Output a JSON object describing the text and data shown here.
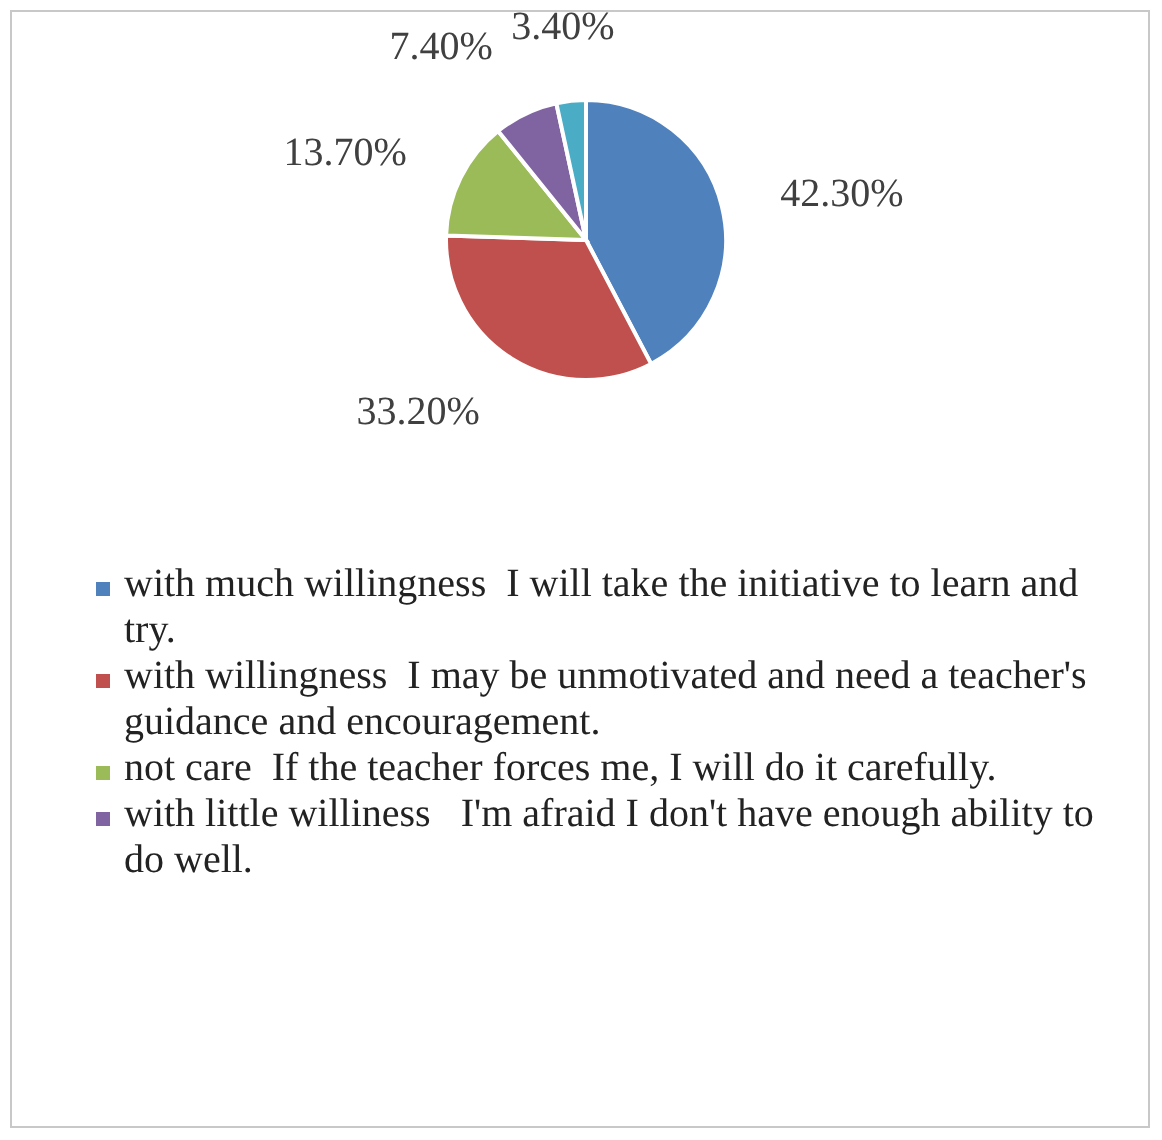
{
  "chart_data": {
    "type": "pie",
    "categories": [
      "with much willingness  I will take the initiative to learn and try.",
      "with willingness  I may be unmotivated and need a teacher's guidance and encouragement.",
      "not care  If the teacher forces me, I will do it carefully.",
      "with little williness   I'm afraid I don't have enough ability to do well.",
      null
    ],
    "values": [
      42.3,
      33.2,
      13.7,
      7.4,
      3.4
    ],
    "colors": [
      "#4f81bd",
      "#c0504d",
      "#9bbb59",
      "#8064a2",
      "#4bacc6"
    ],
    "value_labels": [
      "42.30%",
      "33.20%",
      "13.70%",
      "7.40%",
      "3.40%"
    ],
    "legend": "bottom"
  }
}
